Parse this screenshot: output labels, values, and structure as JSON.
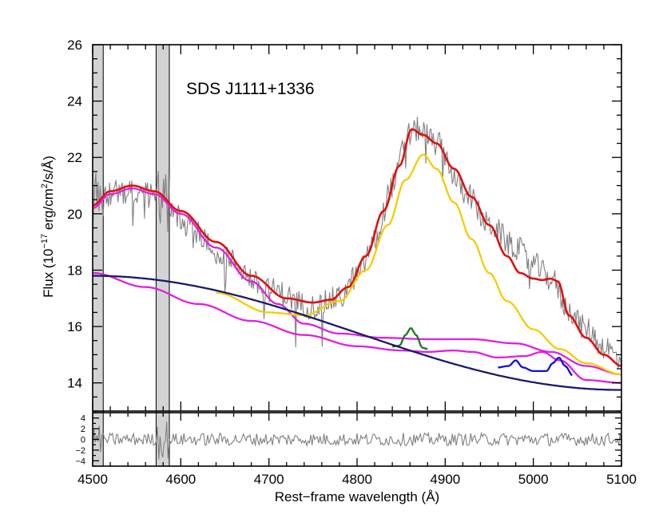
{
  "chart_data": {
    "type": "line",
    "title": "SDS J1111+1336",
    "xlabel": "Rest−frame wavelength (Å)",
    "ylabel": {
      "prefix": "Flux (10",
      "exponent": "−17",
      "middle": " erg/cm",
      "exponent2": "2",
      "suffix": "/s/Å)"
    },
    "xlim": [
      4500,
      5100
    ],
    "ylim": [
      13.0,
      26.0
    ],
    "x_ticks": [
      4500,
      4600,
      4700,
      4800,
      4900,
      5000,
      5100
    ],
    "x_tick_labels": [
      "4500",
      "4600",
      "4700",
      "4800",
      "4900",
      "5000",
      "5100"
    ],
    "y_ticks": [
      14,
      16,
      18,
      20,
      22,
      24,
      26
    ],
    "y_tick_labels": [
      "14",
      "16",
      "18",
      "20",
      "22",
      "24",
      "26"
    ],
    "residual_panel": {
      "ylim": [
        -5,
        5
      ],
      "y_ticks": [
        -4,
        -2,
        0,
        2,
        4
      ],
      "y_tick_labels": [
        "−4",
        "−2",
        "0",
        "2",
        "4"
      ]
    },
    "masked_regions": [
      [
        4500,
        4512
      ],
      [
        4572,
        4587
      ]
    ],
    "series": [
      {
        "name": "observed spectrum",
        "color": "#808080",
        "noise_amplitude": 0.45,
        "knots": [
          [
            4500,
            20.4
          ],
          [
            4530,
            20.8
          ],
          [
            4550,
            20.8
          ],
          [
            4580,
            20.5
          ],
          [
            4610,
            19.5
          ],
          [
            4650,
            18.4
          ],
          [
            4700,
            17.3
          ],
          [
            4750,
            16.7
          ],
          [
            4780,
            17.0
          ],
          [
            4800,
            17.8
          ],
          [
            4820,
            19.0
          ],
          [
            4840,
            21.0
          ],
          [
            4858,
            22.8
          ],
          [
            4870,
            23.0
          ],
          [
            4890,
            22.5
          ],
          [
            4920,
            20.9
          ],
          [
            4950,
            19.6
          ],
          [
            4980,
            18.8
          ],
          [
            5000,
            18.2
          ],
          [
            5020,
            17.7
          ],
          [
            5040,
            16.6
          ],
          [
            5060,
            15.9
          ],
          [
            5080,
            15.3
          ],
          [
            5100,
            14.8
          ]
        ]
      },
      {
        "name": "total model",
        "color": "#e01010",
        "knots": [
          [
            4500,
            20.3
          ],
          [
            4520,
            20.8
          ],
          [
            4545,
            21.0
          ],
          [
            4570,
            20.8
          ],
          [
            4600,
            20.1
          ],
          [
            4640,
            19.0
          ],
          [
            4680,
            17.8
          ],
          [
            4720,
            17.0
          ],
          [
            4750,
            16.85
          ],
          [
            4770,
            16.95
          ],
          [
            4790,
            17.4
          ],
          [
            4810,
            18.5
          ],
          [
            4830,
            20.1
          ],
          [
            4848,
            21.7
          ],
          [
            4862,
            23.0
          ],
          [
            4875,
            22.8
          ],
          [
            4890,
            22.5
          ],
          [
            4910,
            21.6
          ],
          [
            4930,
            20.6
          ],
          [
            4950,
            19.6
          ],
          [
            4970,
            18.5
          ],
          [
            4985,
            17.9
          ],
          [
            5000,
            17.7
          ],
          [
            5010,
            17.65
          ],
          [
            5020,
            17.7
          ],
          [
            5028,
            17.6
          ],
          [
            5040,
            16.4
          ],
          [
            5060,
            15.6
          ],
          [
            5080,
            15.0
          ],
          [
            5100,
            14.6
          ]
        ]
      },
      {
        "name": "Fe II + continuum",
        "color": "#e020e0",
        "knots": [
          [
            4500,
            20.2
          ],
          [
            4520,
            20.7
          ],
          [
            4545,
            20.9
          ],
          [
            4570,
            20.7
          ],
          [
            4600,
            20.0
          ],
          [
            4640,
            18.8
          ],
          [
            4680,
            17.6
          ],
          [
            4710,
            16.8
          ],
          [
            4740,
            16.1
          ],
          [
            4780,
            15.75
          ],
          [
            4830,
            15.6
          ],
          [
            4880,
            15.55
          ],
          [
            4930,
            15.55
          ],
          [
            4980,
            15.4
          ],
          [
            5020,
            15.1
          ],
          [
            5060,
            14.6
          ],
          [
            5100,
            14.3
          ]
        ]
      },
      {
        "name": "Fe II lower template",
        "color": "#e020e0",
        "knots": [
          [
            4500,
            17.9
          ],
          [
            4560,
            17.4
          ],
          [
            4620,
            16.8
          ],
          [
            4680,
            16.2
          ],
          [
            4740,
            15.7
          ],
          [
            4800,
            15.3
          ],
          [
            4850,
            15.15
          ],
          [
            4880,
            15.1
          ],
          [
            4910,
            15.15
          ],
          [
            4930,
            15.1
          ],
          [
            4960,
            14.9
          ],
          [
            4990,
            14.95
          ],
          [
            5010,
            15.1
          ],
          [
            5030,
            14.8
          ],
          [
            5060,
            14.1
          ],
          [
            5100,
            14.0
          ]
        ]
      },
      {
        "name": "Hβ broad",
        "color": "#f5cc00",
        "knots": [
          [
            4640,
            17.2
          ],
          [
            4700,
            16.5
          ],
          [
            4740,
            16.4
          ],
          [
            4780,
            16.9
          ],
          [
            4810,
            18.0
          ],
          [
            4835,
            19.6
          ],
          [
            4855,
            21.2
          ],
          [
            4875,
            22.1
          ],
          [
            4890,
            21.6
          ],
          [
            4910,
            20.4
          ],
          [
            4930,
            19.1
          ],
          [
            4950,
            17.9
          ],
          [
            4970,
            16.9
          ],
          [
            5000,
            15.9
          ],
          [
            5030,
            15.2
          ],
          [
            5060,
            14.7
          ],
          [
            5100,
            14.3
          ]
        ]
      },
      {
        "name": "Hβ narrow",
        "color": "#1a7a1a",
        "knots": [
          [
            4840,
            15.29
          ],
          [
            4848,
            15.32
          ],
          [
            4855,
            15.7
          ],
          [
            4861,
            15.95
          ],
          [
            4867,
            15.7
          ],
          [
            4874,
            15.25
          ],
          [
            4880,
            15.2
          ]
        ]
      },
      {
        "name": "[O III] doublet",
        "color": "#1010e0",
        "knots": [
          [
            4960,
            14.55
          ],
          [
            4972,
            14.6
          ],
          [
            4980,
            14.8
          ],
          [
            4988,
            14.55
          ],
          [
            5000,
            14.42
          ],
          [
            5015,
            14.42
          ],
          [
            5022,
            14.7
          ],
          [
            5029,
            14.9
          ],
          [
            5036,
            14.6
          ],
          [
            5045,
            14.25
          ]
        ]
      },
      {
        "name": "power-law continuum",
        "color": "#1a1a6e",
        "knots": [
          [
            4500,
            17.8
          ],
          [
            5100,
            13.75
          ]
        ]
      },
      {
        "name": "residuals",
        "color": "#808080",
        "panel": "residual",
        "noise_amplitude": 1.2
      }
    ]
  }
}
